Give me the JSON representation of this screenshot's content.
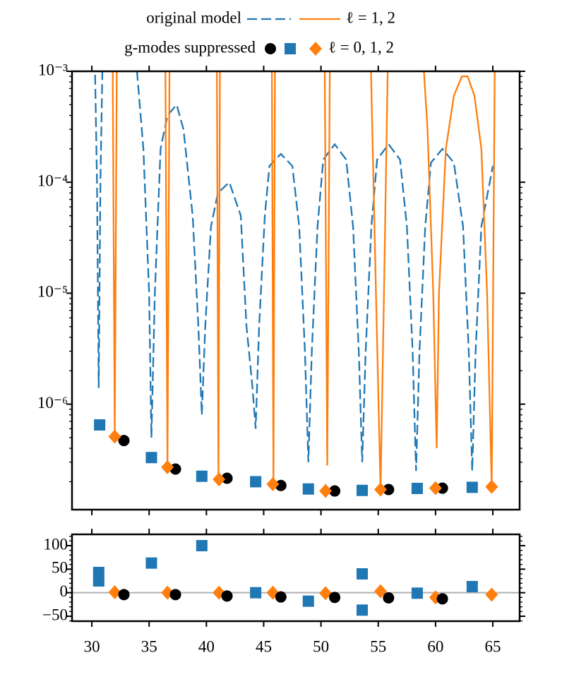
{
  "chart_data": [
    {
      "type": "line",
      "xlim": [
        28.27,
        67.34
      ],
      "ylim": [
        1.12e-07,
        0.001
      ],
      "log_y": true,
      "yticks": [
        {
          "value": 0.001,
          "label": "10⁻³"
        },
        {
          "value": 0.0001,
          "label": "10⁻⁴"
        },
        {
          "value": 1e-05,
          "label": "10⁻⁵"
        },
        {
          "value": 1e-06,
          "label": "10⁻⁶"
        }
      ],
      "series": [
        {
          "name": "original model",
          "color": "#1f77b4",
          "linestyle": "dashed",
          "x": [
            30.2,
            30.45,
            30.6,
            30.75,
            31.0,
            33.8,
            34.5,
            35.0,
            35.2,
            35.5,
            36.0,
            36.6,
            37.4,
            38.0,
            38.8,
            39.3,
            39.6,
            39.9,
            40.4,
            41.0,
            42.0,
            43.0,
            43.5,
            44.0,
            44.3,
            44.6,
            45.1,
            45.5,
            46.5,
            47.5,
            48.1,
            48.6,
            48.9,
            49.2,
            49.7,
            50.2,
            51.2,
            52.2,
            52.8,
            53.3,
            53.6,
            53.9,
            54.4,
            54.9,
            55.9,
            56.9,
            57.5,
            58.0,
            58.3,
            58.6,
            59.1,
            59.6,
            60.6,
            61.6,
            62.4,
            62.9,
            63.2,
            63.5,
            64.0,
            65.0
          ],
          "values": [
            0.003,
            0.0001,
            1.4e-06,
            0.0001,
            0.003,
            0.0015,
            0.0002,
            1e-05,
            5e-07,
            1e-05,
            0.0002,
            0.0004,
            0.0005,
            0.0003,
            5e-05,
            5e-06,
            8e-07,
            5e-06,
            4e-05,
            8e-05,
            0.0001,
            5e-05,
            5e-06,
            1.5e-06,
            6e-07,
            5e-06,
            5e-05,
            0.00014,
            0.00018,
            0.00014,
            4e-05,
            3e-06,
            3e-07,
            3e-06,
            4e-05,
            0.00016,
            0.00022,
            0.00016,
            4e-05,
            3e-06,
            3e-07,
            3e-06,
            4e-05,
            0.00016,
            0.00022,
            0.00016,
            4e-05,
            3e-06,
            2.5e-07,
            3e-06,
            4e-05,
            0.00015,
            0.0002,
            0.00015,
            4e-05,
            3e-06,
            2.5e-07,
            3e-06,
            4e-05,
            0.00014
          ]
        },
        {
          "name": "ℓ = 1, 2",
          "color": "#ff7f0e",
          "linestyle": "solid",
          "x": [
            31.8,
            32.0,
            32.2,
            36.4,
            36.6,
            36.8,
            40.9,
            41.05,
            41.2,
            45.7,
            45.85,
            46.0,
            50.3,
            50.55,
            50.8,
            54.3,
            54.8,
            55.2,
            55.5,
            55.9,
            58.7,
            59.3,
            59.8,
            60.1,
            60.3,
            60.9,
            61.6,
            62.3,
            62.8,
            63.4,
            64.0,
            64.5,
            64.9,
            65.2
          ],
          "values": [
            0.003,
            5.1e-07,
            0.003,
            0.003,
            2.7e-07,
            0.003,
            0.003,
            2.1e-07,
            0.003,
            0.003,
            1.9e-07,
            0.003,
            0.003,
            2.8e-07,
            0.003,
            0.002,
            1e-05,
            1.7e-07,
            1e-05,
            0.003,
            0.003,
            0.0003,
            1e-05,
            4e-07,
            1e-05,
            0.0002,
            0.0006,
            0.0009,
            0.0009,
            0.0006,
            0.0002,
            1e-05,
            1.8e-07,
            0.003
          ]
        },
        {
          "name": "g-modes suppressed",
          "color": "#000000",
          "marker": "circle",
          "x": [
            32.8,
            37.3,
            41.8,
            46.5,
            51.2,
            55.9,
            60.6
          ],
          "values": [
            4.7e-07,
            2.6e-07,
            2.15e-07,
            1.85e-07,
            1.65e-07,
            1.7e-07,
            1.75e-07
          ]
        },
        {
          "color": "#1f77b4",
          "marker": "square",
          "x": [
            30.68,
            35.2,
            39.6,
            44.3,
            48.9,
            53.6,
            58.4,
            63.2
          ],
          "values": [
            6.5e-07,
            3.3e-07,
            2.24e-07,
            2e-07,
            1.72e-07,
            1.67e-07,
            1.74e-07,
            1.78e-07
          ]
        },
        {
          "name": "ℓ = 0, 1, 2",
          "color": "#ff7f0e",
          "marker": "diamond",
          "x": [
            32.0,
            36.6,
            41.1,
            45.8,
            50.4,
            55.2,
            60.0,
            64.9
          ],
          "values": [
            5.1e-07,
            2.7e-07,
            2.1e-07,
            1.9e-07,
            1.65e-07,
            1.7e-07,
            1.75e-07,
            1.8e-07
          ]
        }
      ]
    },
    {
      "type": "scatter",
      "xlim": [
        28.27,
        67.34
      ],
      "ylim": [
        -60.5,
        124
      ],
      "xticks": [
        30,
        35,
        40,
        45,
        50,
        55,
        60,
        65
      ],
      "yticks": [
        100,
        50,
        0,
        {
          "value": -50,
          "label": "−50"
        }
      ],
      "reference_line": 0,
      "series": [
        {
          "color": "#1f77b4",
          "marker": "square",
          "x": [
            30.6,
            30.6,
            35.2,
            39.6,
            44.3,
            48.9,
            53.6,
            53.6,
            58.4,
            63.2
          ],
          "values": [
            43,
            25,
            63,
            100,
            0,
            -18,
            40,
            -37,
            -1,
            13
          ]
        },
        {
          "color": "#ff7f0e",
          "marker": "diamond",
          "x": [
            32.0,
            36.6,
            41.1,
            45.8,
            50.4,
            55.2,
            60.0,
            64.9
          ],
          "values": [
            1,
            0,
            0,
            0,
            -1,
            3,
            -10,
            -4
          ]
        },
        {
          "color": "#000000",
          "marker": "circle",
          "x": [
            32.8,
            37.3,
            41.8,
            46.5,
            51.2,
            55.9,
            60.6
          ],
          "values": [
            -4,
            -4,
            -7,
            -9,
            -10,
            -11,
            -13
          ]
        }
      ]
    }
  ]
}
